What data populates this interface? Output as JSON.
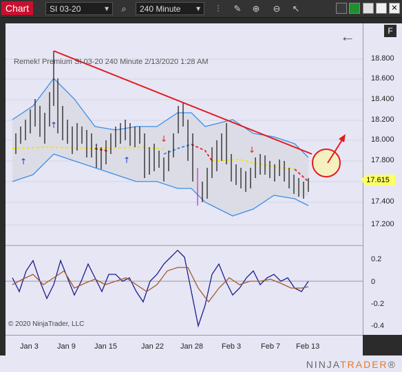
{
  "toolbar": {
    "chart_tab": "Chart",
    "instrument": "SI 03-20",
    "interval": "240 Minute",
    "icons": [
      "magnify-icon",
      "bar-type-icon",
      "pencil-icon",
      "zoom-in-icon",
      "zoom-out-icon",
      "cursor-icon"
    ]
  },
  "info": "Remek!  Premium  SI 03-20  240 Minute  2/13/2020 1:28 AM",
  "copyright": "© 2020 NinjaTrader, LLC",
  "price_axis": [
    "18.800",
    "18.600",
    "18.400",
    "18.200",
    "18.000",
    "17.800",
    "17.615",
    "17.400",
    "17.200"
  ],
  "osc_axis": [
    "0.2",
    "0",
    "-0.2",
    "-0.4"
  ],
  "current_price": "17.615",
  "x_axis": [
    "Jan 3",
    "Jan 9",
    "Jan 15",
    "Jan 22",
    "Jan 28",
    "Feb 3",
    "Feb 7",
    "Feb 13"
  ],
  "logo": {
    "a": "NINJA",
    "b": "TRADER",
    "tm": "®"
  },
  "f_button": "F",
  "colors": {
    "trendline": "#e41a1c",
    "band": "#3a8ee6",
    "mid_yellow": "#f0e020",
    "mid_red": "#e0303a",
    "oscillator_a": "#1c1c8c",
    "oscillator_b": "#a05a2c"
  }
}
